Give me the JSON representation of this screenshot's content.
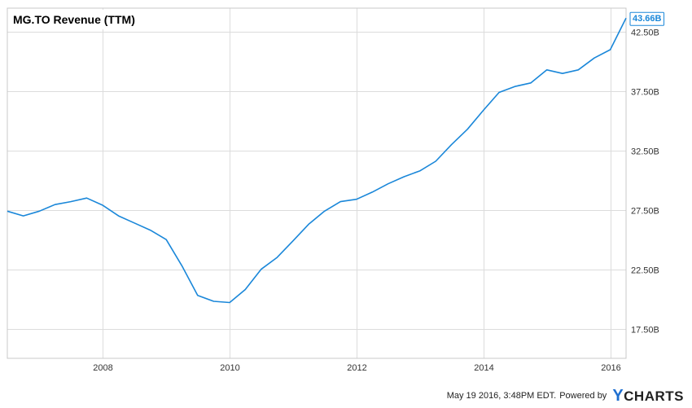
{
  "chart_data": {
    "type": "line",
    "title": "MG.TO Revenue (TTM)",
    "xlabel": "",
    "ylabel": "",
    "x_ticks": [
      "2008",
      "2010",
      "2012",
      "2014",
      "2016"
    ],
    "y_ticks": [
      "17.50B",
      "22.50B",
      "27.50B",
      "32.50B",
      "37.50B",
      "42.50B"
    ],
    "xlim": [
      "2006-06-30",
      "2016-03-31"
    ],
    "ylim": [
      15.0,
      44.5
    ],
    "grid": true,
    "series": [
      {
        "color": "#1a87d9",
        "points": [
          [
            "2006-06-30",
            27.4
          ],
          [
            "2006-09-30",
            27.0
          ],
          [
            "2006-12-31",
            27.4
          ],
          [
            "2007-03-31",
            27.95
          ],
          [
            "2007-06-30",
            28.2
          ],
          [
            "2007-09-30",
            28.5
          ],
          [
            "2007-12-31",
            27.9
          ],
          [
            "2008-03-31",
            27.0
          ],
          [
            "2008-06-30",
            26.4
          ],
          [
            "2008-09-30",
            25.8
          ],
          [
            "2008-12-31",
            25.0
          ],
          [
            "2009-03-31",
            22.8
          ],
          [
            "2009-06-30",
            20.3
          ],
          [
            "2009-09-30",
            19.8
          ],
          [
            "2009-12-31",
            19.7
          ],
          [
            "2010-03-31",
            20.8
          ],
          [
            "2010-06-30",
            22.5
          ],
          [
            "2010-09-30",
            23.5
          ],
          [
            "2010-12-31",
            24.9
          ],
          [
            "2011-03-31",
            26.3
          ],
          [
            "2011-06-30",
            27.4
          ],
          [
            "2011-09-30",
            28.2
          ],
          [
            "2011-12-31",
            28.4
          ],
          [
            "2012-03-31",
            29.0
          ],
          [
            "2012-06-30",
            29.7
          ],
          [
            "2012-09-30",
            30.3
          ],
          [
            "2012-12-31",
            30.8
          ],
          [
            "2013-03-31",
            31.6
          ],
          [
            "2013-06-30",
            33.0
          ],
          [
            "2013-09-30",
            34.3
          ],
          [
            "2013-12-31",
            35.9
          ],
          [
            "2014-03-31",
            37.4
          ],
          [
            "2014-06-30",
            37.9
          ],
          [
            "2014-09-30",
            38.2
          ],
          [
            "2014-12-31",
            39.3
          ],
          [
            "2015-03-31",
            39.0
          ],
          [
            "2015-06-30",
            39.3
          ],
          [
            "2015-09-30",
            40.3
          ],
          [
            "2015-12-31",
            41.0
          ],
          [
            "2016-03-31",
            43.66
          ]
        ]
      }
    ],
    "last_value_label": "43.66B"
  },
  "footer": {
    "timestamp": "May 19 2016, 3:48PM EDT.",
    "powered_by": "Powered by",
    "brand_y": "Y",
    "brand_rest": "CHARTS"
  }
}
